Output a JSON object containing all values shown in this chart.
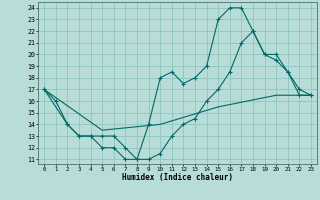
{
  "xlabel": "Humidex (Indice chaleur)",
  "bg_color": "#b8ddd8",
  "grid_color": "#90c4be",
  "line_color": "#006868",
  "xlim": [
    -0.5,
    23.5
  ],
  "ylim": [
    10.6,
    24.5
  ],
  "xticks": [
    0,
    1,
    2,
    3,
    4,
    5,
    6,
    7,
    8,
    9,
    10,
    11,
    12,
    13,
    14,
    15,
    16,
    17,
    18,
    19,
    20,
    21,
    22,
    23
  ],
  "yticks": [
    11,
    12,
    13,
    14,
    15,
    16,
    17,
    18,
    19,
    20,
    21,
    22,
    23,
    24
  ],
  "line1_x": [
    0,
    1,
    2,
    3,
    4,
    5,
    6,
    7,
    8,
    9,
    10,
    11,
    12,
    13,
    14,
    15,
    16,
    17,
    18,
    19,
    20,
    21,
    22,
    23
  ],
  "line1_y": [
    17,
    16,
    14,
    13,
    13,
    12,
    12,
    11,
    11,
    14,
    18,
    18.5,
    17.5,
    18,
    19,
    23,
    24,
    24,
    22,
    20,
    20,
    18.5,
    17,
    16.5
  ],
  "line2_x": [
    0,
    2,
    3,
    4,
    5,
    6,
    7,
    8,
    9,
    10,
    11,
    12,
    13,
    14,
    15,
    16,
    17,
    18,
    19,
    20,
    21,
    22,
    23
  ],
  "line2_y": [
    17,
    14,
    13,
    13,
    13,
    13,
    12,
    11,
    11,
    11.5,
    13,
    14,
    14.5,
    16,
    17,
    18.5,
    21,
    22,
    20,
    19.5,
    18.5,
    16.5,
    16.5
  ],
  "line3_x": [
    0,
    5,
    10,
    15,
    20,
    23
  ],
  "line3_y": [
    17,
    13.5,
    14,
    15.5,
    16.5,
    16.5
  ]
}
